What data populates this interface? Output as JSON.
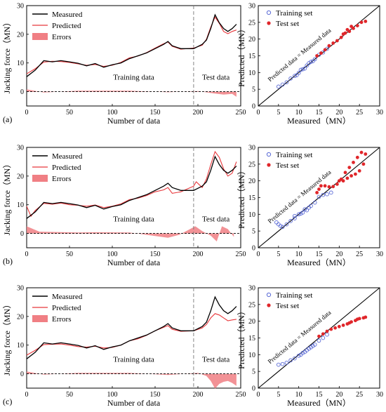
{
  "figure": {
    "left_panel": {
      "ylabel": "Jacking force（MN）",
      "xlabel": "Number of data",
      "legend": [
        "Measured",
        "Predicted",
        "Errors"
      ],
      "train_label": "Training data",
      "test_label": "Test data",
      "x_ticks": [
        "0",
        "50",
        "100",
        "150",
        "200",
        "250"
      ],
      "y_ticks": [
        "0",
        "10",
        "20",
        "30"
      ]
    },
    "right_panel": {
      "ylabel": "Predicted（MN）",
      "xlabel": "Measured（MN）",
      "legend": [
        "Training set",
        "Test set"
      ],
      "diag_label": "Predicted data = Measured data",
      "ticks": [
        "0",
        "5",
        "10",
        "15",
        "20",
        "25",
        "30"
      ]
    },
    "rows": [
      {
        "tag": "(a)"
      },
      {
        "tag": "(b)"
      },
      {
        "tag": "(c)"
      }
    ],
    "colors": {
      "measured": "#000000",
      "predicted": "#e8383c",
      "errors": "#f07f84",
      "train_marker": "#5b6bd6",
      "test_marker": "#e0262a"
    }
  },
  "chart_data": [
    {
      "type": "line",
      "panel": "a-left",
      "x_range": [
        0,
        250
      ],
      "y_range": [
        -5,
        30
      ],
      "split_at": 195,
      "measured": [
        [
          0,
          5.2
        ],
        [
          10,
          7.5
        ],
        [
          20,
          10.8
        ],
        [
          30,
          10.4
        ],
        [
          40,
          10.8
        ],
        [
          50,
          10.4
        ],
        [
          60,
          9.9
        ],
        [
          70,
          9.0
        ],
        [
          80,
          9.8
        ],
        [
          90,
          8.5
        ],
        [
          100,
          9.4
        ],
        [
          110,
          10.0
        ],
        [
          120,
          11.5
        ],
        [
          130,
          12.5
        ],
        [
          140,
          13.5
        ],
        [
          150,
          15.0
        ],
        [
          160,
          16.5
        ],
        [
          165,
          17.5
        ],
        [
          170,
          16.0
        ],
        [
          180,
          15.0
        ],
        [
          195,
          15.0
        ],
        [
          205,
          16.5
        ],
        [
          210,
          18.0
        ],
        [
          215,
          22.0
        ],
        [
          220,
          26.8
        ],
        [
          225,
          24.0
        ],
        [
          230,
          22.0
        ],
        [
          235,
          21.0
        ],
        [
          240,
          22.0
        ],
        [
          245,
          23.5
        ]
      ],
      "predicted": [
        [
          0,
          6.2
        ],
        [
          10,
          8.0
        ],
        [
          20,
          10.3
        ],
        [
          30,
          10.6
        ],
        [
          40,
          10.5
        ],
        [
          50,
          10.2
        ],
        [
          60,
          9.7
        ],
        [
          70,
          9.2
        ],
        [
          80,
          9.5
        ],
        [
          90,
          8.8
        ],
        [
          100,
          9.2
        ],
        [
          110,
          10.2
        ],
        [
          120,
          11.8
        ],
        [
          130,
          12.4
        ],
        [
          140,
          13.6
        ],
        [
          150,
          15.2
        ],
        [
          160,
          16.7
        ],
        [
          165,
          17.3
        ],
        [
          170,
          15.8
        ],
        [
          180,
          14.8
        ],
        [
          195,
          15.2
        ],
        [
          205,
          16.2
        ],
        [
          210,
          18.3
        ],
        [
          215,
          22.5
        ],
        [
          220,
          26.0
        ],
        [
          225,
          23.8
        ],
        [
          230,
          21.0
        ],
        [
          235,
          20.2
        ],
        [
          240,
          21.0
        ],
        [
          245,
          21.5
        ]
      ],
      "errors": [
        [
          0,
          0.8
        ],
        [
          20,
          -0.3
        ],
        [
          60,
          0.3
        ],
        [
          120,
          0.3
        ],
        [
          165,
          -0.2
        ],
        [
          200,
          0.2
        ],
        [
          218,
          -0.6
        ],
        [
          230,
          -1.0
        ],
        [
          240,
          -0.8
        ],
        [
          245,
          -1.8
        ]
      ]
    },
    {
      "type": "scatter",
      "panel": "a-right",
      "x_range": [
        0,
        30
      ],
      "y_range": [
        0,
        30
      ],
      "training": [
        [
          5,
          5.8
        ],
        [
          6,
          6.4
        ],
        [
          7,
          7.1
        ],
        [
          8,
          8.2
        ],
        [
          9,
          9.0
        ],
        [
          10,
          9.9
        ],
        [
          11,
          11.0
        ],
        [
          12,
          12.1
        ],
        [
          13,
          13.2
        ],
        [
          14,
          14.0
        ],
        [
          15,
          15.3
        ],
        [
          16,
          16.0
        ],
        [
          17,
          17.1
        ],
        [
          9.5,
          9.2
        ],
        [
          10.5,
          10.8
        ],
        [
          11.5,
          11.2
        ],
        [
          12.5,
          12.8
        ],
        [
          13.5,
          13.4
        ]
      ],
      "test": [
        [
          14.5,
          15.0
        ],
        [
          15.5,
          15.8
        ],
        [
          16.5,
          16.8
        ],
        [
          17.5,
          18.0
        ],
        [
          18.5,
          18.8
        ],
        [
          19.5,
          19.5
        ],
        [
          20.5,
          20.5
        ],
        [
          21.5,
          21.8
        ],
        [
          22.5,
          22.3
        ],
        [
          23.5,
          23.2
        ],
        [
          24.5,
          24.0
        ],
        [
          25.5,
          25.0
        ],
        [
          26.5,
          25.3
        ],
        [
          21,
          21.5
        ],
        [
          22,
          22.8
        ],
        [
          23,
          23.8
        ]
      ]
    },
    {
      "type": "line",
      "panel": "b-left",
      "x_range": [
        0,
        250
      ],
      "y_range": [
        -5,
        30
      ],
      "split_at": 195,
      "measured": [
        [
          0,
          5.2
        ],
        [
          10,
          7.5
        ],
        [
          20,
          10.8
        ],
        [
          30,
          10.4
        ],
        [
          40,
          10.8
        ],
        [
          50,
          10.4
        ],
        [
          60,
          9.9
        ],
        [
          70,
          9.0
        ],
        [
          80,
          9.8
        ],
        [
          90,
          8.5
        ],
        [
          100,
          9.4
        ],
        [
          110,
          10.0
        ],
        [
          120,
          11.5
        ],
        [
          130,
          12.5
        ],
        [
          140,
          13.5
        ],
        [
          150,
          15.0
        ],
        [
          160,
          16.5
        ],
        [
          165,
          17.5
        ],
        [
          170,
          16.0
        ],
        [
          180,
          15.0
        ],
        [
          195,
          15.0
        ],
        [
          205,
          16.5
        ],
        [
          210,
          18.0
        ],
        [
          215,
          22.0
        ],
        [
          220,
          26.8
        ],
        [
          225,
          24.0
        ],
        [
          230,
          22.0
        ],
        [
          235,
          21.0
        ],
        [
          240,
          22.0
        ],
        [
          245,
          23.5
        ]
      ],
      "predicted": [
        [
          0,
          9.5
        ],
        [
          5,
          6.0
        ],
        [
          10,
          8.0
        ],
        [
          20,
          10.5
        ],
        [
          30,
          10.2
        ],
        [
          40,
          10.6
        ],
        [
          50,
          10.0
        ],
        [
          60,
          9.8
        ],
        [
          70,
          9.5
        ],
        [
          80,
          9.9
        ],
        [
          90,
          9.0
        ],
        [
          100,
          9.5
        ],
        [
          110,
          10.3
        ],
        [
          120,
          11.8
        ],
        [
          130,
          12.3
        ],
        [
          140,
          13.2
        ],
        [
          150,
          14.5
        ],
        [
          160,
          15.2
        ],
        [
          165,
          16.0
        ],
        [
          170,
          14.0
        ],
        [
          180,
          14.5
        ],
        [
          195,
          16.5
        ],
        [
          198,
          18.0
        ],
        [
          205,
          16.0
        ],
        [
          210,
          19.0
        ],
        [
          215,
          24.0
        ],
        [
          220,
          28.5
        ],
        [
          225,
          26.5
        ],
        [
          230,
          22.5
        ],
        [
          235,
          20.0
        ],
        [
          240,
          21.0
        ],
        [
          245,
          25.0
        ]
      ],
      "errors": [
        [
          0,
          2.5
        ],
        [
          15,
          0.6
        ],
        [
          60,
          0.3
        ],
        [
          80,
          0.4
        ],
        [
          120,
          0.3
        ],
        [
          165,
          -1.5
        ],
        [
          178,
          -0.5
        ],
        [
          197,
          2.5
        ],
        [
          205,
          0.8
        ],
        [
          215,
          -0.8
        ],
        [
          222,
          -2.8
        ],
        [
          228,
          2.5
        ],
        [
          235,
          1.5
        ],
        [
          242,
          -1.2
        ]
      ]
    },
    {
      "type": "scatter",
      "panel": "b-right",
      "x_range": [
        0,
        30
      ],
      "y_range": [
        0,
        30
      ],
      "training": [
        [
          4.5,
          7.6
        ],
        [
          5,
          7.0
        ],
        [
          5.5,
          6.5
        ],
        [
          6,
          6.2
        ],
        [
          7,
          7.0
        ],
        [
          8,
          8.0
        ],
        [
          9,
          8.8
        ],
        [
          10,
          10.0
        ],
        [
          11,
          10.5
        ],
        [
          12,
          11.2
        ],
        [
          13,
          12.5
        ],
        [
          14,
          13.5
        ],
        [
          15,
          15.2
        ],
        [
          16,
          15.8
        ],
        [
          17,
          16.0
        ],
        [
          18,
          16.5
        ],
        [
          9,
          9.5
        ],
        [
          10.5,
          10.2
        ],
        [
          11.5,
          11.5
        ],
        [
          12.5,
          12.0
        ]
      ],
      "test": [
        [
          14.5,
          16.5
        ],
        [
          15,
          17.5
        ],
        [
          15.5,
          18.5
        ],
        [
          16.5,
          18.5
        ],
        [
          17.5,
          18.2
        ],
        [
          18.5,
          18.3
        ],
        [
          19.5,
          19.0
        ],
        [
          20.5,
          20.5
        ],
        [
          21.5,
          22.5
        ],
        [
          22.5,
          24.0
        ],
        [
          23.5,
          25.5
        ],
        [
          24.5,
          27.0
        ],
        [
          25.5,
          28.5
        ],
        [
          26.5,
          28.0
        ],
        [
          26,
          25.0
        ],
        [
          25,
          23.0
        ],
        [
          24,
          22.0
        ],
        [
          23,
          21.5
        ],
        [
          22,
          20.8
        ],
        [
          21,
          20.0
        ],
        [
          20,
          20.0
        ]
      ]
    },
    {
      "type": "line",
      "panel": "c-left",
      "x_range": [
        0,
        250
      ],
      "y_range": [
        -5,
        30
      ],
      "split_at": 195,
      "measured": [
        [
          0,
          5.2
        ],
        [
          10,
          7.5
        ],
        [
          20,
          10.8
        ],
        [
          30,
          10.4
        ],
        [
          40,
          10.8
        ],
        [
          50,
          10.4
        ],
        [
          60,
          9.9
        ],
        [
          70,
          9.0
        ],
        [
          80,
          9.8
        ],
        [
          90,
          8.5
        ],
        [
          100,
          9.4
        ],
        [
          110,
          10.0
        ],
        [
          120,
          11.5
        ],
        [
          130,
          12.5
        ],
        [
          140,
          13.5
        ],
        [
          150,
          15.0
        ],
        [
          160,
          16.5
        ],
        [
          165,
          17.5
        ],
        [
          170,
          16.0
        ],
        [
          180,
          15.0
        ],
        [
          195,
          15.0
        ],
        [
          205,
          16.5
        ],
        [
          210,
          18.0
        ],
        [
          215,
          22.0
        ],
        [
          220,
          26.8
        ],
        [
          225,
          24.0
        ],
        [
          230,
          22.0
        ],
        [
          235,
          21.0
        ],
        [
          240,
          22.0
        ],
        [
          245,
          23.5
        ]
      ],
      "predicted": [
        [
          0,
          6.5
        ],
        [
          10,
          8.2
        ],
        [
          20,
          10.2
        ],
        [
          30,
          10.3
        ],
        [
          40,
          10.4
        ],
        [
          50,
          10.0
        ],
        [
          60,
          9.5
        ],
        [
          70,
          9.3
        ],
        [
          80,
          9.6
        ],
        [
          90,
          9.0
        ],
        [
          100,
          9.2
        ],
        [
          110,
          10.0
        ],
        [
          120,
          11.5
        ],
        [
          130,
          12.2
        ],
        [
          140,
          13.4
        ],
        [
          150,
          15.0
        ],
        [
          160,
          16.2
        ],
        [
          165,
          16.8
        ],
        [
          170,
          15.5
        ],
        [
          180,
          14.8
        ],
        [
          195,
          15.0
        ],
        [
          205,
          16.0
        ],
        [
          210,
          17.2
        ],
        [
          215,
          19.5
        ],
        [
          220,
          21.0
        ],
        [
          225,
          20.5
        ],
        [
          230,
          19.5
        ],
        [
          235,
          18.5
        ],
        [
          240,
          18.8
        ],
        [
          245,
          19.0
        ]
      ],
      "errors": [
        [
          0,
          0.8
        ],
        [
          20,
          -0.3
        ],
        [
          60,
          0.3
        ],
        [
          120,
          0.3
        ],
        [
          165,
          -0.4
        ],
        [
          200,
          0.3
        ],
        [
          210,
          -0.8
        ],
        [
          215,
          -2.5
        ],
        [
          220,
          -5.2
        ],
        [
          225,
          -3.5
        ],
        [
          230,
          -2.8
        ],
        [
          235,
          -2.5
        ],
        [
          240,
          -3.2
        ],
        [
          245,
          -4.2
        ]
      ]
    },
    {
      "type": "scatter",
      "panel": "c-right",
      "x_range": [
        0,
        30
      ],
      "y_range": [
        0,
        30
      ],
      "training": [
        [
          5,
          7.0
        ],
        [
          6,
          7.2
        ],
        [
          7,
          7.6
        ],
        [
          8,
          8.3
        ],
        [
          9,
          8.9
        ],
        [
          10,
          9.7
        ],
        [
          11,
          10.5
        ],
        [
          12,
          11.3
        ],
        [
          13,
          12.2
        ],
        [
          14,
          13.0
        ],
        [
          15,
          14.2
        ],
        [
          16,
          15.0
        ],
        [
          17,
          16.0
        ],
        [
          10.5,
          10.0
        ],
        [
          11.5,
          10.8
        ],
        [
          12.5,
          11.8
        ],
        [
          13.5,
          12.6
        ]
      ],
      "test": [
        [
          15,
          15.5
        ],
        [
          16,
          16.2
        ],
        [
          17,
          17.0
        ],
        [
          18,
          17.6
        ],
        [
          19,
          18.0
        ],
        [
          20,
          18.4
        ],
        [
          21,
          18.8
        ],
        [
          22,
          19.2
        ],
        [
          23,
          19.8
        ],
        [
          24,
          20.2
        ],
        [
          25,
          20.8
        ],
        [
          26,
          21.0
        ],
        [
          26.5,
          21.2
        ],
        [
          22.5,
          19.5
        ],
        [
          24.5,
          20.6
        ]
      ]
    }
  ]
}
